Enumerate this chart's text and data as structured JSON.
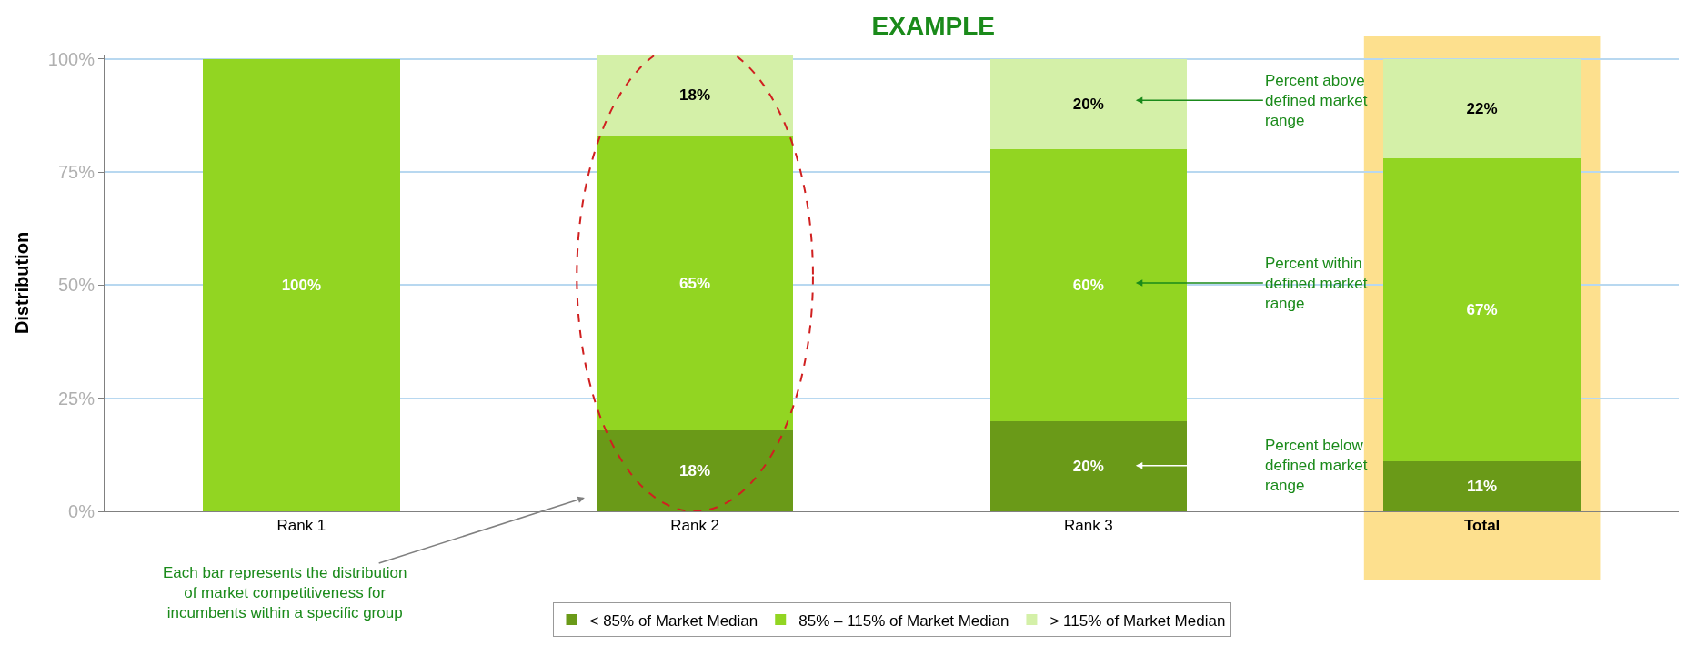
{
  "chart_data": {
    "type": "bar",
    "title": "EXAMPLE",
    "ylabel": "Distribution",
    "categories": [
      "Rank 1",
      "Rank 2",
      "Rank 3",
      "Total"
    ],
    "stacked": true,
    "series": [
      {
        "name": "< 85% of Market Median",
        "color": "#6a9a18",
        "values": [
          0,
          18,
          20,
          11
        ],
        "value_labels": [
          null,
          "18%",
          "20%",
          "11%"
        ]
      },
      {
        "name": "85% – 115% of Market Median",
        "color": "#92d522",
        "values": [
          100,
          65,
          60,
          67
        ],
        "value_labels": [
          "100%",
          "65%",
          "60%",
          "67%"
        ]
      },
      {
        "name": "> 115% of Market Median",
        "color": "#d4f0a8",
        "values": [
          0,
          18,
          20,
          22
        ],
        "value_labels": [
          null,
          "18%",
          "20%",
          "22%"
        ]
      }
    ],
    "ylim": [
      0,
      101
    ],
    "yticks": [
      {
        "value": 0,
        "label": "0%"
      },
      {
        "value": 25,
        "label": "25%"
      },
      {
        "value": 50,
        "label": "50%"
      },
      {
        "value": 75,
        "label": "75%"
      },
      {
        "value": 100,
        "label": "100%"
      }
    ],
    "grid": "y",
    "legend": "bottom",
    "bands": [
      {
        "axis": "x",
        "from": "Total",
        "to": "Total",
        "color": "#fde08e"
      }
    ],
    "annotations": [
      "Percent above defined market range",
      "Percent within defined market range",
      "Percent below defined market range",
      "Each bar represents the distribution of market competitiveness for incumbents within a specific group"
    ]
  }
}
